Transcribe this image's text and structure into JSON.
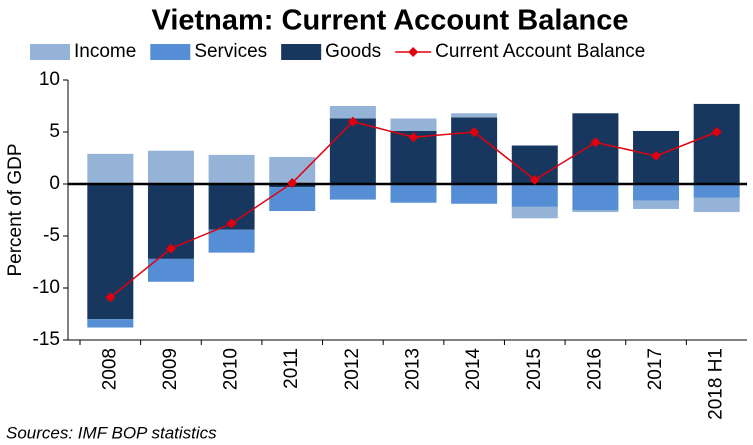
{
  "chart_data": {
    "type": "bar",
    "title": "Vietnam: Current Account Balance",
    "y_label": "Percent of GDP",
    "source": "Sources: IMF BOP statistics",
    "categories": [
      "2008",
      "2009",
      "2010",
      "2011",
      "2012",
      "2013",
      "2014",
      "2015",
      "2016",
      "2017",
      "2018 H1"
    ],
    "series": [
      {
        "name": "Income",
        "color": "#95b3d7",
        "values": [
          2.9,
          3.2,
          2.8,
          2.6,
          1.2,
          1.2,
          0.4,
          -1.1,
          -0.2,
          -0.8,
          -1.4
        ]
      },
      {
        "name": "Services",
        "color": "#558ed5",
        "values": [
          -0.8,
          -2.2,
          -2.2,
          -2.3,
          -1.5,
          -1.8,
          -1.9,
          -2.2,
          -2.5,
          -1.6,
          -1.3
        ]
      },
      {
        "name": "Goods",
        "color": "#17375e",
        "values": [
          -13.0,
          -7.2,
          -4.4,
          -0.3,
          6.3,
          5.1,
          6.4,
          3.7,
          6.8,
          5.1,
          7.7
        ]
      },
      {
        "name": "Current Account Balance",
        "type": "line",
        "color": "#e0000f",
        "values": [
          -10.9,
          -6.2,
          -3.8,
          0.1,
          6.0,
          4.5,
          5.0,
          0.4,
          4.0,
          2.7,
          5.0
        ]
      }
    ],
    "ylim": [
      -15,
      10
    ],
    "yticks": [
      -15,
      -10,
      -5,
      0,
      5,
      10
    ],
    "stacked": true,
    "grid": false,
    "legend": "top"
  }
}
